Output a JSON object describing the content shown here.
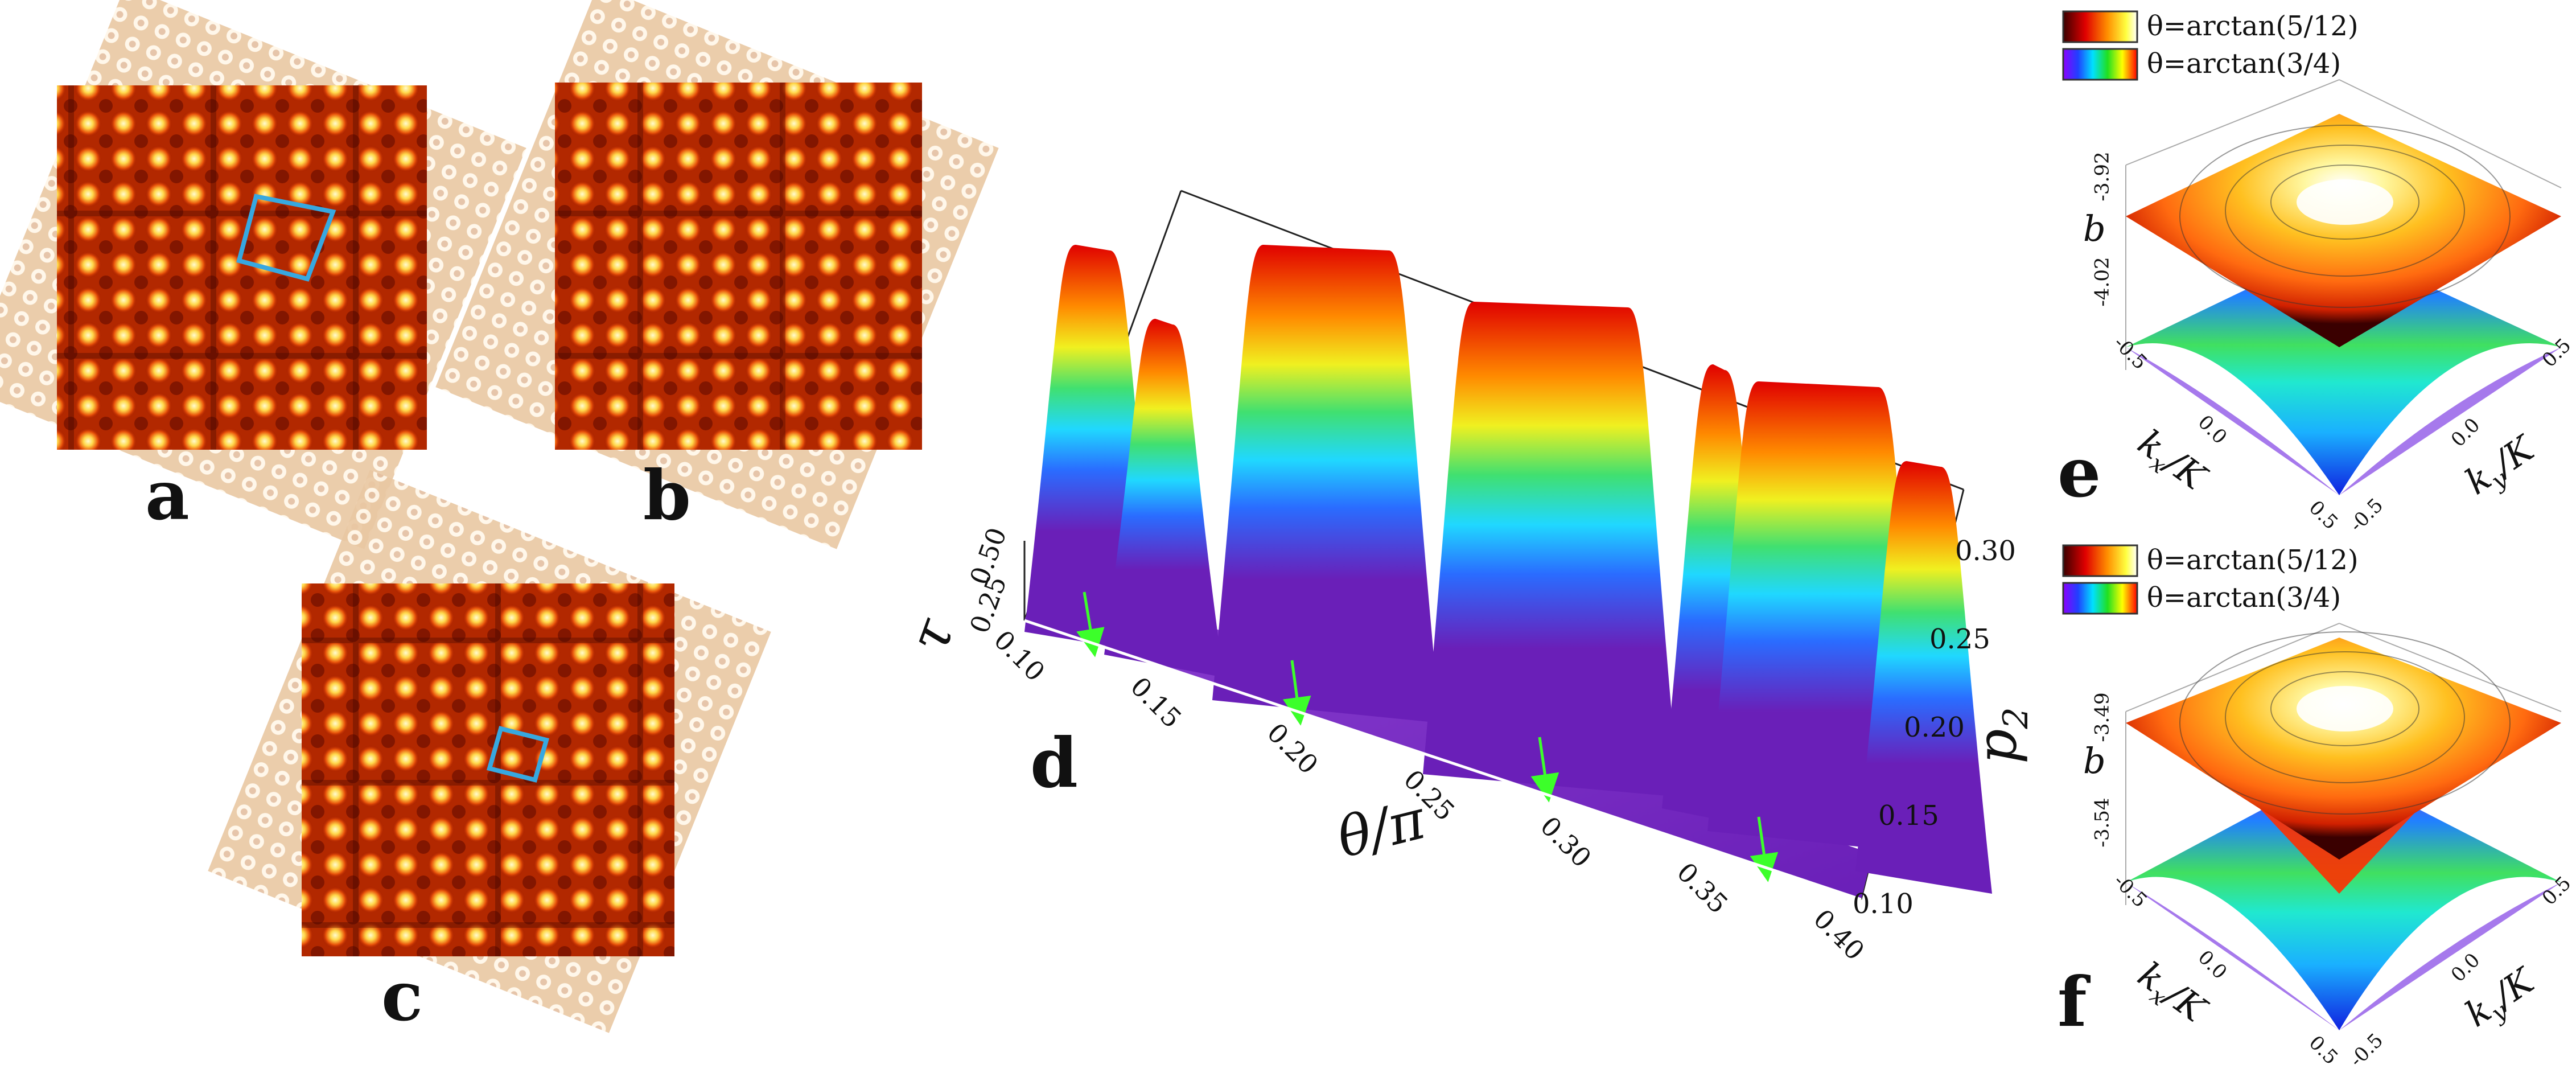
{
  "panels": {
    "a": {
      "label": "a"
    },
    "b": {
      "label": "b"
    },
    "c": {
      "label": "c"
    },
    "d": {
      "label": "d"
    },
    "e": {
      "label": "e"
    },
    "f": {
      "label": "f"
    }
  },
  "panel_d": {
    "x_axis_label": "θ/π",
    "y_axis_label": "p",
    "y_axis_sub": "2",
    "z_axis_label": "τ",
    "x_ticks": [
      "0.10",
      "0.15",
      "0.20",
      "0.25",
      "0.30",
      "0.35",
      "0.40"
    ],
    "y_ticks": [
      "0.10",
      "0.15",
      "0.20",
      "0.25",
      "0.30"
    ],
    "z_ticks": [
      "0.25",
      "0.50"
    ]
  },
  "panel_e": {
    "legend": [
      {
        "label": "θ=arctan(5/12)",
        "colormap": "hot"
      },
      {
        "label": "θ=arctan(3/4)",
        "colormap": "rainbow"
      }
    ],
    "z_label": "b",
    "z_ticks": [
      "-3.92",
      "-4.02"
    ],
    "kx_label": "k",
    "kx_sub": "x",
    "ky_label": "k",
    "ky_sub": "y",
    "k_denominator": "/K",
    "kx_ticks": [
      "-0.5",
      "0.0",
      "0.5"
    ],
    "ky_ticks": [
      "-0.5",
      "0.0",
      "0.5"
    ]
  },
  "panel_f": {
    "legend": [
      {
        "label": "θ=arctan(5/12)",
        "colormap": "hot"
      },
      {
        "label": "θ=arctan(3/4)",
        "colormap": "rainbow"
      }
    ],
    "z_label": "b",
    "z_ticks": [
      "-3.49",
      "-3.54"
    ],
    "kx_label": "k",
    "kx_sub": "x",
    "ky_label": "k",
    "ky_sub": "y",
    "k_denominator": "/K",
    "kx_ticks": [
      "-0.5",
      "0.0",
      "0.5"
    ],
    "ky_ticks": [
      "-0.5",
      "0.0",
      "0.5"
    ]
  },
  "colors": {
    "moire_dark": "#8a0f00",
    "moire_bright": "#ffe07a",
    "pale_lattice": "#f2d3b4",
    "cell_outline": "#37a8e0",
    "arrow": "#3cff2a"
  }
}
